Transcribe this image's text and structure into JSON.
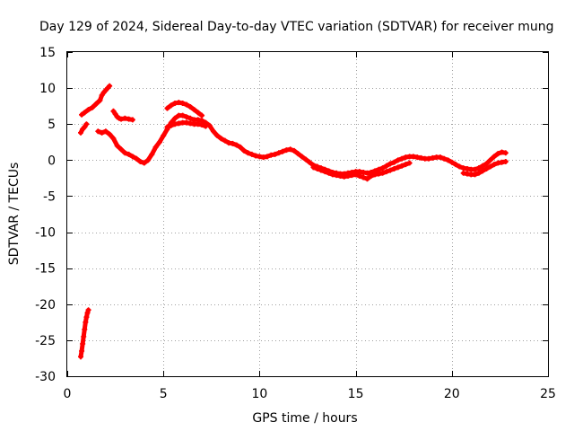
{
  "chart_data": {
    "type": "scatter",
    "title": "Day 129 of 2024, Sidereal Day-to-day VTEC variation (SDTVAR) for receiver mung",
    "xlabel": "GPS time / hours",
    "ylabel": "SDTVAR / TECUs",
    "xlim": [
      0,
      25
    ],
    "ylim": [
      -30,
      15
    ],
    "xticks": [
      0,
      5,
      10,
      15,
      20,
      25
    ],
    "xtick_labels": [
      "0",
      "5",
      "10",
      "15",
      "20",
      "25"
    ],
    "yticks": [
      -30,
      -25,
      -20,
      -15,
      -10,
      -5,
      0,
      5,
      10,
      15
    ],
    "ytick_labels": [
      "-30",
      "-25",
      "-20",
      "-15",
      "-10",
      "-5",
      "0",
      "5",
      "10",
      "15"
    ],
    "grid": true,
    "marker": "+",
    "series": [
      {
        "name": "SDTVAR",
        "color": "#ff0000",
        "segments": [
          {
            "x": [
              0.7,
              0.75,
              0.8,
              0.85,
              0.9,
              0.95,
              1.0,
              1.05,
              1.1
            ],
            "y": [
              -27.3,
              -26.5,
              -25.5,
              -24.5,
              -23.5,
              -22.5,
              -21.8,
              -21.2,
              -20.8
            ]
          },
          {
            "x": [
              0.7,
              0.8,
              0.9,
              1.0
            ],
            "y": [
              3.8,
              4.3,
              4.6,
              5.0
            ]
          },
          {
            "x": [
              0.75,
              0.9,
              1.1,
              1.3,
              1.5,
              1.7,
              1.8,
              1.9,
              2.0,
              2.1,
              2.2
            ],
            "y": [
              6.3,
              6.6,
              7.0,
              7.3,
              7.8,
              8.3,
              9.0,
              9.4,
              9.7,
              10.0,
              10.3
            ]
          },
          {
            "x": [
              1.6,
              1.8,
              2.0,
              2.2,
              2.4,
              2.6,
              2.8,
              3.0,
              3.2,
              3.4,
              3.6,
              3.8,
              4.0,
              4.2,
              4.4,
              4.6,
              4.8,
              5.0,
              5.2,
              5.4,
              5.6,
              5.8,
              6.0,
              6.2,
              6.4,
              6.6,
              6.8,
              7.0,
              7.2,
              7.4,
              7.6,
              7.8,
              8.0,
              8.2,
              8.4,
              8.6,
              8.8,
              9.0,
              9.2,
              9.4,
              9.6,
              9.8,
              10.0,
              10.2,
              10.4,
              10.6,
              10.8,
              11.0,
              11.2,
              11.4,
              11.6,
              11.8,
              12.0,
              12.2,
              12.4,
              12.6,
              12.8,
              13.0,
              13.2,
              13.4,
              13.6,
              13.8,
              14.0,
              14.2,
              14.4,
              14.6,
              14.8,
              15.0,
              15.2,
              15.4,
              15.6,
              15.8,
              16.0,
              16.2,
              16.4,
              16.6,
              16.8,
              17.0,
              17.2,
              17.4,
              17.6,
              17.8,
              18.0,
              18.2,
              18.4,
              18.6,
              18.8,
              19.0,
              19.2,
              19.4,
              19.6,
              19.8,
              20.0,
              20.2,
              20.4,
              20.6,
              20.8,
              21.0,
              21.2,
              21.4,
              21.6,
              21.8,
              22.0,
              22.2,
              22.4,
              22.6,
              22.8
            ],
            "y": [
              4.0,
              3.8,
              4.0,
              3.6,
              3.0,
              2.0,
              1.5,
              1.0,
              0.8,
              0.5,
              0.2,
              -0.2,
              -0.4,
              0.0,
              0.8,
              1.8,
              2.5,
              3.4,
              4.3,
              5.2,
              5.8,
              6.2,
              6.2,
              6.0,
              5.8,
              5.6,
              5.6,
              5.5,
              5.2,
              4.8,
              4.0,
              3.4,
              3.0,
              2.7,
              2.4,
              2.3,
              2.1,
              1.8,
              1.3,
              1.0,
              0.8,
              0.6,
              0.5,
              0.4,
              0.5,
              0.7,
              0.8,
              1.0,
              1.2,
              1.4,
              1.5,
              1.3,
              0.9,
              0.5,
              0.1,
              -0.3,
              -0.7,
              -0.9,
              -1.1,
              -1.3,
              -1.5,
              -1.7,
              -1.8,
              -1.9,
              -1.9,
              -1.8,
              -1.7,
              -1.6,
              -1.6,
              -1.7,
              -1.8,
              -1.7,
              -1.5,
              -1.3,
              -1.1,
              -0.8,
              -0.5,
              -0.3,
              0.0,
              0.2,
              0.4,
              0.5,
              0.5,
              0.4,
              0.3,
              0.2,
              0.2,
              0.3,
              0.4,
              0.4,
              0.2,
              0.0,
              -0.3,
              -0.6,
              -0.9,
              -1.1,
              -1.2,
              -1.3,
              -1.3,
              -1.1,
              -0.8,
              -0.5,
              0.0,
              0.5,
              0.9,
              1.1,
              1.0
            ]
          },
          {
            "x": [
              2.4,
              2.5,
              2.6,
              2.7,
              2.8,
              3.0,
              3.2,
              3.4
            ],
            "y": [
              6.8,
              6.4,
              6.0,
              5.8,
              5.7,
              5.8,
              5.7,
              5.6
            ]
          },
          {
            "x": [
              5.2,
              5.4,
              5.6,
              5.8,
              6.0,
              6.2,
              6.4,
              6.6,
              6.8,
              7.0
            ],
            "y": [
              7.2,
              7.6,
              7.9,
              8.0,
              7.9,
              7.7,
              7.4,
              7.0,
              6.6,
              6.2
            ]
          },
          {
            "x": [
              5.2,
              5.4,
              5.6,
              5.8,
              6.0,
              6.2,
              6.4,
              6.6,
              6.8,
              7.0,
              7.2
            ],
            "y": [
              4.6,
              4.8,
              5.0,
              5.1,
              5.2,
              5.2,
              5.1,
              5.0,
              5.0,
              4.9,
              4.7
            ]
          },
          {
            "x": [
              12.8,
              13.0,
              13.2,
              13.4,
              13.6,
              13.8,
              14.0,
              14.2,
              14.4,
              14.6,
              14.8,
              15.0,
              15.2,
              15.4,
              15.6,
              15.8,
              16.0,
              16.2,
              16.4,
              16.6,
              16.8,
              17.0,
              17.2,
              17.4,
              17.6,
              17.8
            ],
            "y": [
              -1.0,
              -1.2,
              -1.4,
              -1.6,
              -1.8,
              -2.0,
              -2.1,
              -2.2,
              -2.3,
              -2.2,
              -2.1,
              -2.0,
              -2.2,
              -2.4,
              -2.6,
              -2.2,
              -2.0,
              -1.9,
              -1.8,
              -1.6,
              -1.4,
              -1.2,
              -1.0,
              -0.8,
              -0.6,
              -0.4
            ]
          },
          {
            "x": [
              20.6,
              20.8,
              21.0,
              21.2,
              21.4,
              21.6,
              21.8,
              22.0,
              22.2,
              22.4,
              22.6,
              22.8
            ],
            "y": [
              -1.8,
              -1.9,
              -2.0,
              -2.0,
              -1.8,
              -1.5,
              -1.2,
              -0.9,
              -0.6,
              -0.4,
              -0.3,
              -0.2
            ]
          }
        ]
      }
    ]
  }
}
